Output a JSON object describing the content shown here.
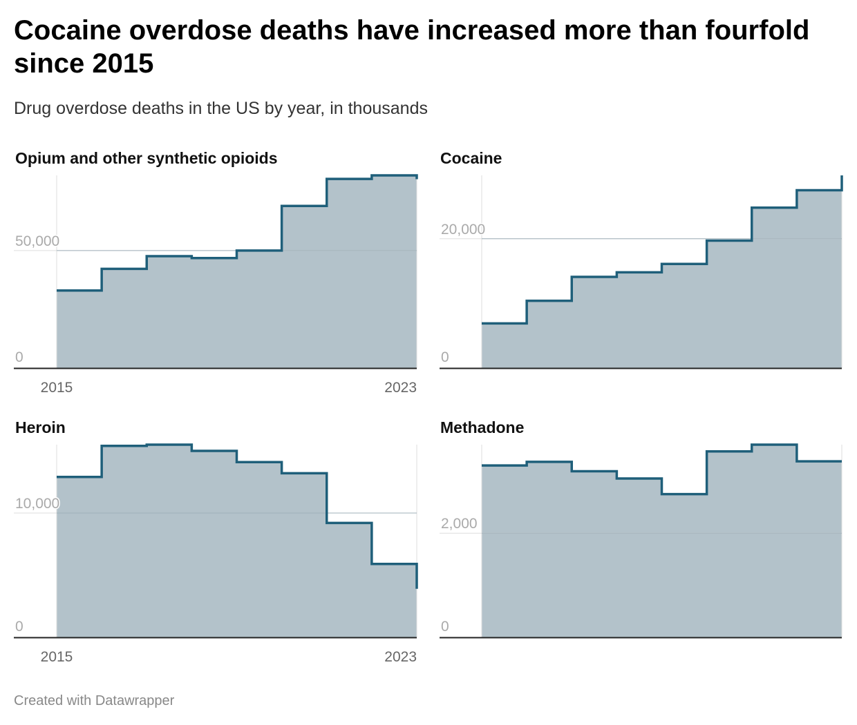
{
  "header": {
    "title": "Cocaine overdose deaths have increased more than fourfold since 2015",
    "subtitle": "Drug overdose deaths in the US by year, in thousands"
  },
  "footer": {
    "credit": "Created with Datawrapper"
  },
  "colors": {
    "line": "#1f5f7a",
    "area": "#b3c2ca",
    "grid": "#dddddd",
    "axis": "#222222",
    "tick": "#aaaaaa",
    "xtick": "#666666"
  },
  "chart_data": [
    {
      "type": "area",
      "title": "Opium and other synthetic opioids",
      "step": true,
      "x": [
        2015,
        2016,
        2017,
        2018,
        2019,
        2020,
        2021,
        2022,
        2023
      ],
      "values": [
        33000,
        42200,
        47600,
        46800,
        50000,
        69000,
        80500,
        82000,
        80400
      ],
      "ylim": [
        0,
        82000
      ],
      "yticks": [
        0,
        50000
      ],
      "ytick_labels": [
        "0",
        "50,000"
      ],
      "xtick_labels": [
        "2015",
        "2023"
      ],
      "grid": true
    },
    {
      "type": "area",
      "title": "Cocaine",
      "step": true,
      "x": [
        2015,
        2016,
        2017,
        2018,
        2019,
        2020,
        2021,
        2022,
        2023
      ],
      "values": [
        6900,
        10400,
        14100,
        14800,
        16100,
        19700,
        24800,
        27500,
        29800
      ],
      "ylim": [
        0,
        29800
      ],
      "yticks": [
        0,
        20000
      ],
      "ytick_labels": [
        "0",
        "20,000"
      ],
      "xtick_labels": [],
      "grid": true
    },
    {
      "type": "area",
      "title": "Heroin",
      "step": true,
      "x": [
        2015,
        2016,
        2017,
        2018,
        2019,
        2020,
        2021,
        2022,
        2023
      ],
      "values": [
        12900,
        15400,
        15500,
        15000,
        14100,
        13200,
        9200,
        5900,
        3900
      ],
      "ylim": [
        0,
        15500
      ],
      "yticks": [
        0,
        10000
      ],
      "ytick_labels": [
        "0",
        "10,000"
      ],
      "xtick_labels": [
        "2015",
        "2023"
      ],
      "grid": true
    },
    {
      "type": "area",
      "title": "Methadone",
      "step": true,
      "x": [
        2015,
        2016,
        2017,
        2018,
        2019,
        2020,
        2021,
        2022,
        2023
      ],
      "values": [
        3300,
        3370,
        3190,
        3050,
        2750,
        3570,
        3700,
        3380,
        3380
      ],
      "ylim": [
        0,
        3700
      ],
      "yticks": [
        0,
        2000
      ],
      "ytick_labels": [
        "0",
        "2,000"
      ],
      "xtick_labels": [],
      "grid": true
    }
  ]
}
